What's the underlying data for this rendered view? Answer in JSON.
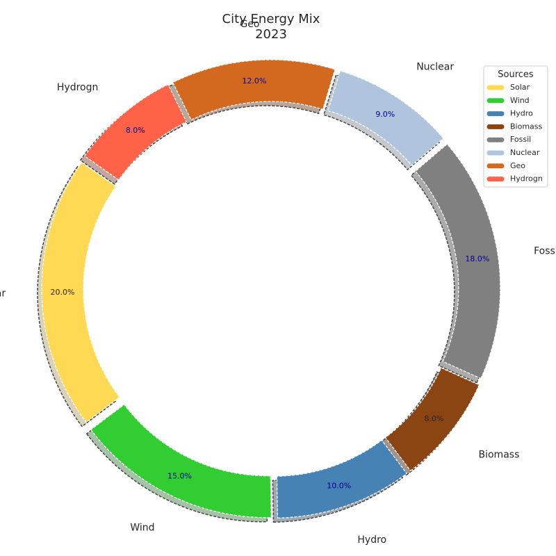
{
  "chart_data": {
    "type": "pie",
    "variant": "donut",
    "title": [
      "City Energy Mix",
      "2023"
    ],
    "start_angle_deg": 145,
    "direction": "counterclockwise",
    "slices": [
      {
        "label": "Solar",
        "value": 20.0,
        "pct_label": "20.0%",
        "color": "#FFD954",
        "pct_color": "#262626"
      },
      {
        "label": "Wind",
        "value": 15.0,
        "pct_label": "15.0%",
        "color": "#32CD32",
        "pct_color": "#00008B"
      },
      {
        "label": "Hydro",
        "value": 10.0,
        "pct_label": "10.0%",
        "color": "#4682B4",
        "pct_color": "#00008B"
      },
      {
        "label": "Biomass",
        "value": 8.0,
        "pct_label": "8.0%",
        "color": "#8B4513",
        "pct_color": "#262626"
      },
      {
        "label": "Fossil",
        "value": 18.0,
        "pct_label": "18.0%",
        "color": "#808080",
        "pct_color": "#00008B"
      },
      {
        "label": "Nuclear",
        "value": 9.0,
        "pct_label": "9.0%",
        "color": "#B0C4DE",
        "pct_color": "#00008B"
      },
      {
        "label": "Geo",
        "value": 12.0,
        "pct_label": "12.0%",
        "color": "#D2691E",
        "pct_color": "#00008B"
      },
      {
        "label": "Hydrogn",
        "value": 8.0,
        "pct_label": "8.0%",
        "color": "#FF6347",
        "pct_color": "#00008B"
      }
    ],
    "legend": {
      "title": "Sources",
      "position": "top-right"
    }
  }
}
